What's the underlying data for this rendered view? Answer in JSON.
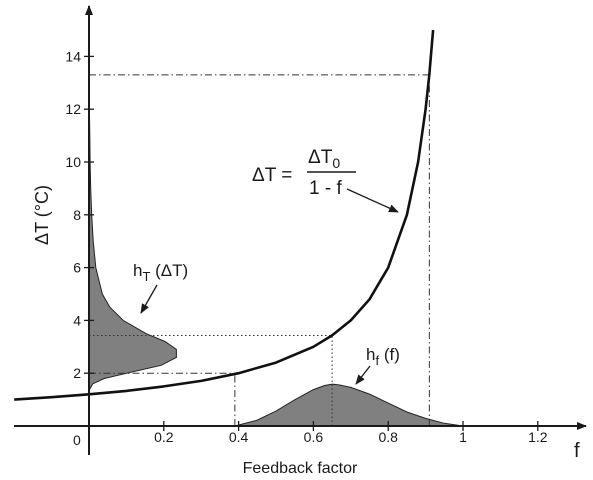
{
  "chart_data": {
    "type": "line",
    "title": "",
    "xlabel": "Feedback factor",
    "x_axis_symbol": "f",
    "ylabel": "ΔT (°C)",
    "xlim": [
      -0.2,
      1.3
    ],
    "ylim": [
      0,
      15
    ],
    "x_ticks": [
      0.2,
      0.4,
      0.6,
      0.8,
      1,
      1.2
    ],
    "x_tick_labels": [
      "0.2",
      "0.4",
      "0.6",
      "0.8",
      "1",
      "1.2"
    ],
    "y_ticks": [
      2,
      4,
      6,
      8,
      10,
      12,
      14
    ],
    "y_tick_labels": [
      "2",
      "4",
      "6",
      "8",
      "10",
      "12",
      "14"
    ],
    "origin_label": "0",
    "grid": false,
    "legend": false,
    "series": [
      {
        "kind": "curve",
        "x": [
          -0.2,
          -0.1,
          0.0,
          0.1,
          0.2,
          0.3,
          0.4,
          0.5,
          0.6,
          0.65,
          0.7,
          0.75,
          0.8,
          0.85,
          0.88,
          0.9,
          0.91,
          0.92
        ],
        "y": [
          1.0,
          1.09,
          1.2,
          1.33,
          1.5,
          1.71,
          2.0,
          2.4,
          3.0,
          3.43,
          4.0,
          4.8,
          6.0,
          8.0,
          10.0,
          12.0,
          13.3,
          15.0
        ]
      },
      {
        "kind": "filled_distribution_f",
        "x": [
          0.39,
          0.45,
          0.5,
          0.55,
          0.6,
          0.63,
          0.65,
          0.67,
          0.7,
          0.75,
          0.8,
          0.85,
          0.9,
          0.95,
          1.0
        ],
        "y": [
          0.0,
          0.22,
          0.55,
          0.97,
          1.35,
          1.5,
          1.55,
          1.52,
          1.43,
          1.18,
          0.85,
          0.52,
          0.28,
          0.1,
          0.0
        ]
      },
      {
        "kind": "filled_distribution_dT",
        "dT": [
          1.35,
          1.6,
          1.8,
          2.0,
          2.3,
          2.6,
          2.9,
          3.2,
          3.5,
          4.0,
          4.5,
          5.0,
          6.0,
          7.0,
          8.0,
          9.0,
          10.0,
          11.0,
          12.0,
          13.5
        ],
        "density": [
          0.0,
          0.01,
          0.04,
          0.1,
          0.19,
          0.23,
          0.23,
          0.2,
          0.15,
          0.09,
          0.055,
          0.035,
          0.018,
          0.011,
          0.007,
          0.0045,
          0.003,
          0.002,
          0.001,
          0.0
        ]
      }
    ],
    "reference_lines": [
      {
        "style": "dashdot",
        "x0": 0.0,
        "y0": 13.3,
        "x1": 0.91,
        "y1": 13.3
      },
      {
        "style": "dashdot",
        "x0": 0.91,
        "y0": 0.0,
        "x1": 0.91,
        "y1": 13.3
      },
      {
        "style": "dashdot",
        "x0": 0.0,
        "y0": 2.0,
        "x1": 0.39,
        "y1": 2.0
      },
      {
        "style": "dashdot",
        "x0": 0.39,
        "y0": 0.0,
        "x1": 0.39,
        "y1": 2.0
      },
      {
        "style": "dotted",
        "x0": 0.0,
        "y0": 3.43,
        "x1": 0.65,
        "y1": 3.43
      },
      {
        "style": "dotted",
        "x0": 0.65,
        "y0": 0.0,
        "x1": 0.65,
        "y1": 3.43
      }
    ],
    "annotations": {
      "equation_lhs": "ΔT = ",
      "equation_numerator": "ΔT",
      "equation_numerator_sub": "0",
      "equation_denominator": "1 - f",
      "hT_label_main": "h",
      "hT_label_sub": "T",
      "hT_label_arg": " (ΔT)",
      "hf_label_main": "h",
      "hf_label_sub": "f",
      "hf_label_arg": " (f)"
    },
    "colors": {
      "curve": "#111111",
      "fill": "#808080",
      "axis": "#1a1a1a"
    }
  }
}
